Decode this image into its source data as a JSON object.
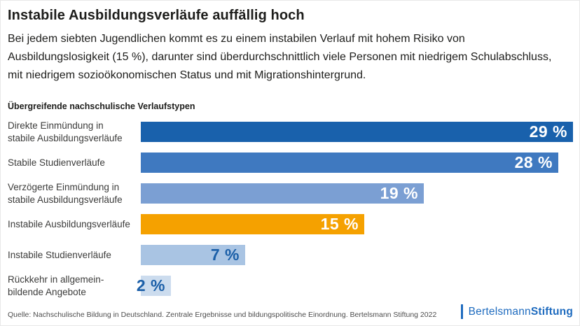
{
  "header": {
    "title": "Instabile Ausbildungsverläufe auffällig hoch",
    "subtitle": "Bei jedem siebten Jugendlichen kommt es zu einem instabilen Verlauf mit hohem Risiko von Ausbildungslosigkeit (15 %), darunter sind überdurchschnittlich viele Personen mit niedrigem Schulabschluss, mit niedrigem sozioökonomischen Status und mit Migrationshintergrund."
  },
  "chart_data": {
    "type": "bar",
    "orientation": "horizontal",
    "title": "Übergreifende nachschulische Verlaufstypen",
    "categories": [
      "Direkte Einmündung in stabile Ausbildungsverläufe",
      "Stabile Studienverläufe",
      "Verzögerte Einmündung in stabile Ausbildungsverläufe",
      "Instabile Ausbildungsverläufe",
      "Instabile Studienverläufe",
      "Rückkehr in allgemein­bildende Angebote"
    ],
    "values": [
      29,
      28,
      19,
      15,
      7,
      2
    ],
    "value_labels": [
      "29 %",
      "28 %",
      "19 %",
      "15 %",
      "7 %",
      "2 %"
    ],
    "bar_colors": [
      "#1961ac",
      "#3f79c0",
      "#7b9fd3",
      "#f5a100",
      "#a9c4e3",
      "#ccdcee"
    ],
    "value_label_colors": [
      "#ffffff",
      "#ffffff",
      "#ffffff",
      "#ffffff",
      "#1b5fa8",
      "#1b5fa8"
    ],
    "highlight_index": 3,
    "xlim": [
      0,
      29
    ],
    "grid": false,
    "value_labels_position": "inside-end"
  },
  "footer": {
    "source": "Quelle: Nachschulische Bildung in Deutschland. Zentrale Ergebnisse und bildungspolitische Einordnung. Bertelsmann Stiftung 2022",
    "logo": {
      "part1": "Bertelsmann",
      "part2": "Stiftung",
      "color": "#1e6bbf"
    }
  }
}
